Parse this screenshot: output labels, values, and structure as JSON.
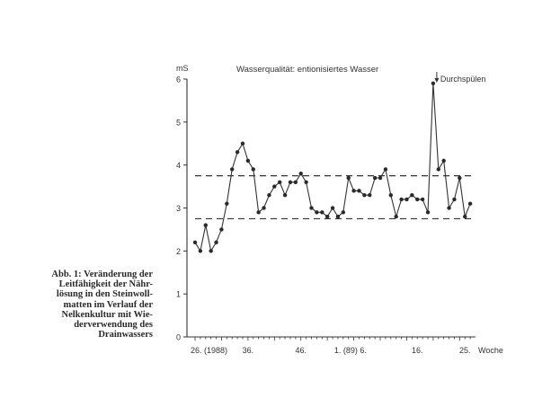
{
  "chart_data": {
    "type": "line",
    "title": "Wasserqualität: entionisiertes Wasser",
    "ylabel": "mS",
    "xlabel": "Woche",
    "ylim": [
      0,
      6
    ],
    "yticks": [
      0,
      1,
      2,
      3,
      4,
      5,
      6
    ],
    "xlim": [
      0,
      53
    ],
    "x_tick_labels": [
      {
        "x": 0,
        "label": "26. (1988)"
      },
      {
        "x": 10,
        "label": "36."
      },
      {
        "x": 20,
        "label": "46."
      },
      {
        "x": 27,
        "label": "1. (89) 6."
      },
      {
        "x": 42,
        "label": "16."
      },
      {
        "x": 51,
        "label": "25."
      }
    ],
    "grid": false,
    "reference_lines": [
      3.75,
      2.75
    ],
    "annotation": {
      "x": 45,
      "text": "Durchspülen"
    },
    "series": [
      {
        "values": [
          {
            "x": 0,
            "y": 2.2
          },
          {
            "x": 1,
            "y": 2.0
          },
          {
            "x": 2,
            "y": 2.6
          },
          {
            "x": 3,
            "y": 2.0
          },
          {
            "x": 4,
            "y": 2.2
          },
          {
            "x": 5,
            "y": 2.5
          },
          {
            "x": 6,
            "y": 3.1
          },
          {
            "x": 7,
            "y": 3.9
          },
          {
            "x": 8,
            "y": 4.3
          },
          {
            "x": 9,
            "y": 4.5
          },
          {
            "x": 10,
            "y": 4.1
          },
          {
            "x": 11,
            "y": 3.9
          },
          {
            "x": 12,
            "y": 2.9
          },
          {
            "x": 13,
            "y": 3.0
          },
          {
            "x": 14,
            "y": 3.3
          },
          {
            "x": 15,
            "y": 3.5
          },
          {
            "x": 16,
            "y": 3.6
          },
          {
            "x": 17,
            "y": 3.3
          },
          {
            "x": 18,
            "y": 3.6
          },
          {
            "x": 19,
            "y": 3.6
          },
          {
            "x": 20,
            "y": 3.8
          },
          {
            "x": 21,
            "y": 3.6
          },
          {
            "x": 22,
            "y": 3.0
          },
          {
            "x": 23,
            "y": 2.9
          },
          {
            "x": 24,
            "y": 2.9
          },
          {
            "x": 25,
            "y": 2.8
          },
          {
            "x": 26,
            "y": 3.0
          },
          {
            "x": 27,
            "y": 2.8
          },
          {
            "x": 28,
            "y": 2.9
          },
          {
            "x": 29,
            "y": 3.7
          },
          {
            "x": 30,
            "y": 3.4
          },
          {
            "x": 31,
            "y": 3.4
          },
          {
            "x": 32,
            "y": 3.3
          },
          {
            "x": 33,
            "y": 3.3
          },
          {
            "x": 34,
            "y": 3.7
          },
          {
            "x": 35,
            "y": 3.7
          },
          {
            "x": 36,
            "y": 3.9
          },
          {
            "x": 37,
            "y": 3.3
          },
          {
            "x": 38,
            "y": 2.8
          },
          {
            "x": 39,
            "y": 3.2
          },
          {
            "x": 40,
            "y": 3.2
          },
          {
            "x": 41,
            "y": 3.3
          },
          {
            "x": 42,
            "y": 3.2
          },
          {
            "x": 43,
            "y": 3.2
          },
          {
            "x": 44,
            "y": 2.9
          },
          {
            "x": 45,
            "y": 5.9
          },
          {
            "x": 46,
            "y": 3.9
          },
          {
            "x": 47,
            "y": 4.1
          },
          {
            "x": 48,
            "y": 3.0
          },
          {
            "x": 49,
            "y": 3.2
          },
          {
            "x": 50,
            "y": 3.7
          },
          {
            "x": 51,
            "y": 2.8
          },
          {
            "x": 52,
            "y": 3.1
          }
        ]
      }
    ]
  },
  "caption": {
    "lines": [
      "Abb. 1: Veränderung der",
      "Leitfähigkeit der Nähr-",
      "lösung in den Steinwoll-",
      "matten im Verlauf der",
      "Nelkenkultur mit Wie-",
      "derverwendung des",
      "Drainwassers"
    ]
  }
}
